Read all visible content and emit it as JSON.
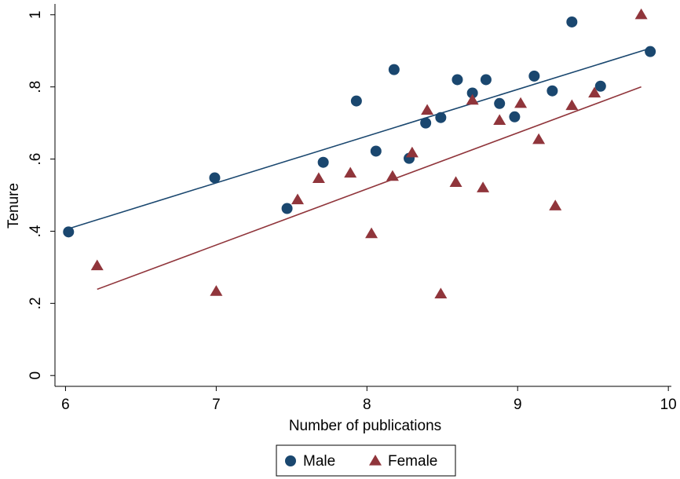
{
  "chart_data": {
    "type": "scatter",
    "x_label": "Number of publications",
    "y_label": "Tenure",
    "xlim": [
      5.93,
      10.02
    ],
    "ylim": [
      -0.03,
      1.03
    ],
    "xticks": [
      6,
      7,
      8,
      9,
      10
    ],
    "yticks": [
      0,
      {
        "value": 0.2,
        "label": ".2"
      },
      {
        "value": 0.4,
        "label": ".4"
      },
      {
        "value": 0.6,
        "label": ".6"
      },
      {
        "value": 0.8,
        "label": ".8"
      },
      1
    ],
    "legend": "bottom",
    "series": [
      {
        "name": "Male",
        "color": "#1a476f",
        "marker": "circle",
        "x": [
          6.02,
          6.99,
          7.47,
          7.71,
          7.93,
          8.06,
          8.18,
          8.28,
          8.39,
          8.49,
          8.6,
          8.7,
          8.79,
          8.88,
          8.98,
          9.11,
          9.23,
          9.36,
          9.55,
          9.88
        ],
        "values": [
          0.398,
          0.548,
          0.463,
          0.591,
          0.761,
          0.622,
          0.848,
          0.602,
          0.7,
          0.715,
          0.82,
          0.783,
          0.82,
          0.754,
          0.717,
          0.83,
          0.789,
          0.98,
          0.802,
          0.898
        ],
        "fit": {
          "x": [
            6.02,
            9.88
          ],
          "values": [
            0.407,
            0.907
          ]
        }
      },
      {
        "name": "Female",
        "color": "#90353b",
        "marker": "triangle",
        "x": [
          6.21,
          7.0,
          7.54,
          7.68,
          7.89,
          8.03,
          8.17,
          8.3,
          8.4,
          8.49,
          8.59,
          8.7,
          8.77,
          8.88,
          9.02,
          9.14,
          9.25,
          9.36,
          9.51,
          9.82
        ],
        "values": [
          0.304,
          0.233,
          0.487,
          0.546,
          0.561,
          0.393,
          0.552,
          0.617,
          0.735,
          0.226,
          0.535,
          0.763,
          0.52,
          0.707,
          0.754,
          0.654,
          0.47,
          0.748,
          0.783,
          1.0
        ],
        "fit": {
          "x": [
            6.21,
            9.82
          ],
          "values": [
            0.239,
            0.8
          ]
        }
      }
    ]
  }
}
